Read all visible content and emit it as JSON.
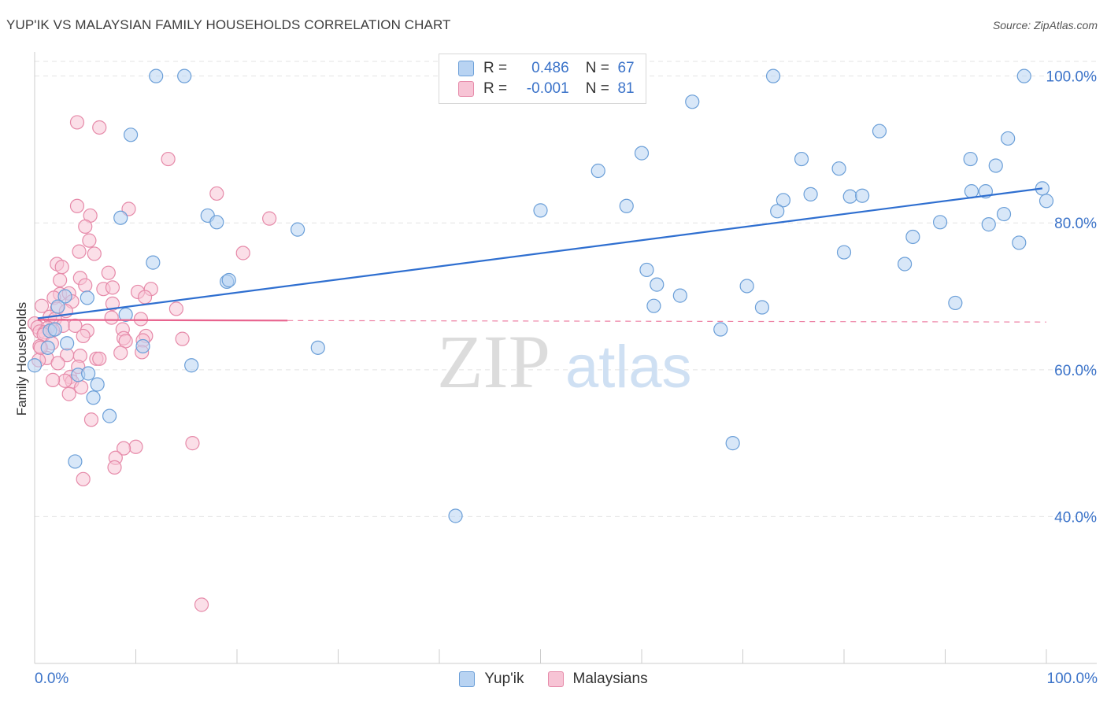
{
  "title": "YUP'IK VS MALAYSIAN FAMILY HOUSEHOLDS CORRELATION CHART",
  "source": "Source: ZipAtlas.com",
  "watermark": {
    "zip": "ZIP",
    "atlas": "atlas"
  },
  "colors": {
    "blue_fill": "#b8d3f2",
    "blue_stroke": "#6b9fd8",
    "blue_line": "#2f6fd0",
    "pink_fill": "#f7c4d5",
    "pink_stroke": "#e68aa9",
    "pink_line": "#e8638e",
    "tick_text": "#3b73c9",
    "grid": "#e3e3e3"
  },
  "legend": {
    "r_label": "R =",
    "n_label": "N =",
    "rows": [
      {
        "r": "0.486",
        "n": "67"
      },
      {
        "r": "-0.001",
        "n": "81"
      }
    ]
  },
  "chart_data": {
    "type": "scatter",
    "title": "YUP'IK VS MALAYSIAN FAMILY HOUSEHOLDS CORRELATION CHART",
    "xlabel": "",
    "ylabel": "Family Households",
    "xlim": [
      0,
      100
    ],
    "ylim": [
      20,
      102
    ],
    "x_tick_labels": [
      "0.0%",
      "100.0%"
    ],
    "y_ticks": [
      40,
      60,
      80,
      100
    ],
    "y_tick_labels": [
      "40.0%",
      "60.0%",
      "80.0%",
      "100.0%"
    ],
    "grid": true,
    "legend": [
      "Yup'ik",
      "Malaysians"
    ],
    "series": [
      {
        "name": "Yup'ik",
        "r": 0.486,
        "n": 67,
        "trend": {
          "x0": 0.3,
          "y0": 67.0,
          "x1": 99.6,
          "y1": 84.7
        },
        "points": [
          [
            12.0,
            100.0
          ],
          [
            14.8,
            100.0
          ],
          [
            73.0,
            100.0
          ],
          [
            97.8,
            100.0
          ],
          [
            9.5,
            92.0
          ],
          [
            65.0,
            96.5
          ],
          [
            83.5,
            92.5
          ],
          [
            96.2,
            91.5
          ],
          [
            60.0,
            89.5
          ],
          [
            75.8,
            88.7
          ],
          [
            79.5,
            87.4
          ],
          [
            92.5,
            88.7
          ],
          [
            95.0,
            87.8
          ],
          [
            55.7,
            87.1
          ],
          [
            80.6,
            83.6
          ],
          [
            81.8,
            83.7
          ],
          [
            76.7,
            83.9
          ],
          [
            92.6,
            84.3
          ],
          [
            94.0,
            84.3
          ],
          [
            99.6,
            84.7
          ],
          [
            74.0,
            83.1
          ],
          [
            100.0,
            83.0
          ],
          [
            58.5,
            82.3
          ],
          [
            50.0,
            81.7
          ],
          [
            73.4,
            81.6
          ],
          [
            8.5,
            80.7
          ],
          [
            17.1,
            81.0
          ],
          [
            18.0,
            80.1
          ],
          [
            94.3,
            79.8
          ],
          [
            89.5,
            80.1
          ],
          [
            95.8,
            81.2
          ],
          [
            26.0,
            79.1
          ],
          [
            86.8,
            78.1
          ],
          [
            97.3,
            77.3
          ],
          [
            80.0,
            76.0
          ],
          [
            86.0,
            74.4
          ],
          [
            11.7,
            74.6
          ],
          [
            60.5,
            73.6
          ],
          [
            19.0,
            72.0
          ],
          [
            19.2,
            72.2
          ],
          [
            61.5,
            71.6
          ],
          [
            70.4,
            71.4
          ],
          [
            63.8,
            70.1
          ],
          [
            5.2,
            69.8
          ],
          [
            3.0,
            70.0
          ],
          [
            61.2,
            68.7
          ],
          [
            71.9,
            68.5
          ],
          [
            91.0,
            69.1
          ],
          [
            9.0,
            67.5
          ],
          [
            2.3,
            68.6
          ],
          [
            67.8,
            65.5
          ],
          [
            1.5,
            65.3
          ],
          [
            0.0,
            60.6
          ],
          [
            10.7,
            63.2
          ],
          [
            3.2,
            63.6
          ],
          [
            28.0,
            63.0
          ],
          [
            15.5,
            60.6
          ],
          [
            4.3,
            59.3
          ],
          [
            5.3,
            59.5
          ],
          [
            6.2,
            58.0
          ],
          [
            5.8,
            56.2
          ],
          [
            7.4,
            53.7
          ],
          [
            69.0,
            50.0
          ],
          [
            4.0,
            47.5
          ],
          [
            41.6,
            40.1
          ],
          [
            1.3,
            63.0
          ],
          [
            2.0,
            65.5
          ]
        ]
      },
      {
        "name": "Malaysians",
        "r": -0.001,
        "n": 81,
        "trend": {
          "x0": 0.3,
          "y0": 66.8,
          "x1": 25.0,
          "y1": 66.7
        },
        "trend_extension": {
          "x0": 25.0,
          "y0": 66.7,
          "x1": 100.0,
          "y1": 66.5
        },
        "points": [
          [
            4.2,
            93.7
          ],
          [
            6.4,
            93.0
          ],
          [
            13.2,
            88.7
          ],
          [
            18.0,
            84.0
          ],
          [
            4.2,
            82.3
          ],
          [
            9.3,
            81.9
          ],
          [
            5.5,
            81.0
          ],
          [
            23.2,
            80.6
          ],
          [
            5.0,
            79.5
          ],
          [
            5.4,
            77.6
          ],
          [
            4.4,
            76.1
          ],
          [
            5.9,
            75.8
          ],
          [
            20.6,
            75.9
          ],
          [
            2.2,
            74.4
          ],
          [
            2.7,
            74.0
          ],
          [
            7.3,
            73.2
          ],
          [
            4.5,
            72.5
          ],
          [
            2.5,
            72.2
          ],
          [
            5.0,
            71.5
          ],
          [
            6.8,
            71.0
          ],
          [
            7.7,
            71.2
          ],
          [
            11.5,
            71.0
          ],
          [
            10.2,
            70.6
          ],
          [
            2.5,
            70.3
          ],
          [
            3.4,
            70.4
          ],
          [
            1.9,
            69.8
          ],
          [
            3.7,
            69.3
          ],
          [
            10.9,
            69.9
          ],
          [
            7.7,
            69.0
          ],
          [
            0.7,
            68.7
          ],
          [
            2.2,
            68.3
          ],
          [
            3.1,
            68.0
          ],
          [
            14.0,
            68.3
          ],
          [
            7.6,
            67.1
          ],
          [
            10.5,
            66.9
          ],
          [
            1.5,
            67.2
          ],
          [
            2.0,
            66.9
          ],
          [
            0.0,
            66.3
          ],
          [
            0.3,
            65.8
          ],
          [
            1.3,
            65.7
          ],
          [
            2.8,
            66.0
          ],
          [
            4.0,
            66.0
          ],
          [
            0.5,
            65.2
          ],
          [
            1.0,
            65.1
          ],
          [
            1.8,
            65.4
          ],
          [
            8.7,
            65.5
          ],
          [
            5.2,
            65.3
          ],
          [
            0.9,
            64.8
          ],
          [
            11.0,
            64.6
          ],
          [
            14.6,
            64.2
          ],
          [
            8.8,
            64.3
          ],
          [
            4.8,
            64.6
          ],
          [
            10.7,
            64.0
          ],
          [
            9.0,
            63.9
          ],
          [
            1.7,
            63.6
          ],
          [
            0.5,
            63.2
          ],
          [
            8.5,
            62.3
          ],
          [
            10.6,
            62.4
          ],
          [
            4.5,
            61.9
          ],
          [
            3.2,
            62.0
          ],
          [
            6.1,
            61.5
          ],
          [
            6.4,
            61.5
          ],
          [
            1.2,
            61.6
          ],
          [
            2.3,
            60.9
          ],
          [
            4.3,
            60.4
          ],
          [
            3.5,
            59.0
          ],
          [
            3.7,
            58.4
          ],
          [
            3.0,
            58.5
          ],
          [
            0.4,
            61.3
          ],
          [
            4.6,
            57.6
          ],
          [
            1.8,
            58.6
          ],
          [
            3.4,
            56.7
          ],
          [
            5.6,
            53.2
          ],
          [
            15.6,
            50.0
          ],
          [
            10.0,
            49.5
          ],
          [
            8.8,
            49.3
          ],
          [
            8.0,
            48.0
          ],
          [
            7.9,
            46.7
          ],
          [
            4.8,
            45.1
          ],
          [
            16.5,
            28.0
          ],
          [
            0.6,
            63.0
          ]
        ]
      }
    ]
  },
  "bottom_legend": [
    "Yup'ik",
    "Malaysians"
  ]
}
